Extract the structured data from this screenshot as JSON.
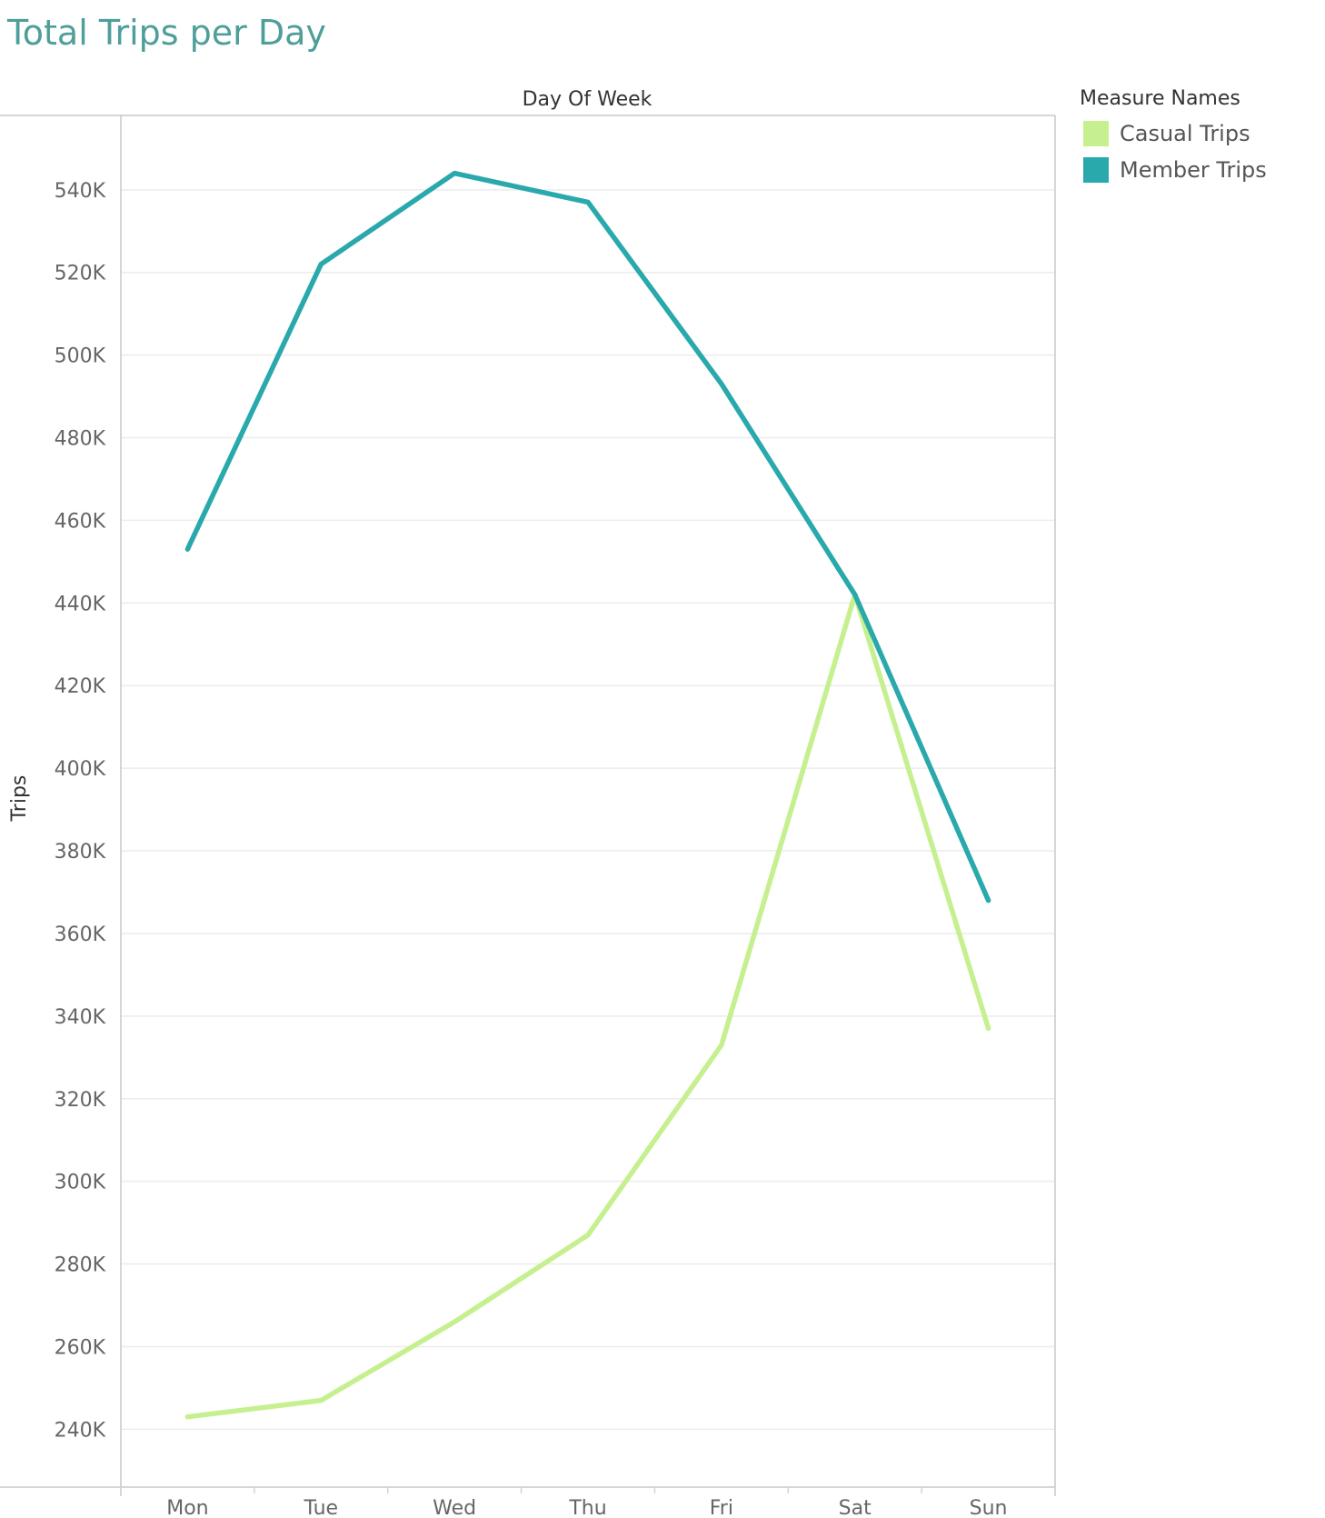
{
  "chart_data": {
    "type": "line",
    "title": "Total Trips per Day",
    "xlabel": "Day Of Week",
    "ylabel": "Trips",
    "categories": [
      "Mon",
      "Tue",
      "Wed",
      "Thu",
      "Fri",
      "Sat",
      "Sun"
    ],
    "ylim": [
      226000,
      558000
    ],
    "yticks": [
      240000,
      260000,
      280000,
      300000,
      320000,
      340000,
      360000,
      380000,
      400000,
      420000,
      440000,
      460000,
      480000,
      500000,
      520000,
      540000
    ],
    "ytick_labels": [
      "240K",
      "260K",
      "280K",
      "300K",
      "320K",
      "340K",
      "360K",
      "380K",
      "400K",
      "420K",
      "440K",
      "460K",
      "480K",
      "500K",
      "520K",
      "540K"
    ],
    "grid": true,
    "legend": {
      "title": "Measure Names",
      "position": "top-right"
    },
    "series": [
      {
        "name": "Casual Trips",
        "color": "#c6f08f",
        "values": [
          243000,
          247000,
          266000,
          287000,
          333000,
          442000,
          337000
        ]
      },
      {
        "name": "Member Trips",
        "color": "#2aa9ac",
        "values": [
          453000,
          522000,
          544000,
          537000,
          493000,
          442000,
          368000
        ]
      }
    ]
  }
}
